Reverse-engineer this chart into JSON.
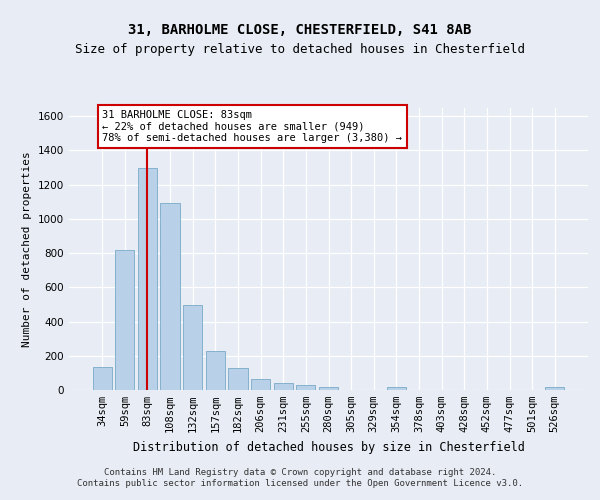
{
  "title1": "31, BARHOLME CLOSE, CHESTERFIELD, S41 8AB",
  "title2": "Size of property relative to detached houses in Chesterfield",
  "xlabel": "Distribution of detached houses by size in Chesterfield",
  "ylabel": "Number of detached properties",
  "categories": [
    "34sqm",
    "59sqm",
    "83sqm",
    "108sqm",
    "132sqm",
    "157sqm",
    "182sqm",
    "206sqm",
    "231sqm",
    "255sqm",
    "280sqm",
    "305sqm",
    "329sqm",
    "354sqm",
    "378sqm",
    "403sqm",
    "428sqm",
    "452sqm",
    "477sqm",
    "501sqm",
    "526sqm"
  ],
  "values": [
    135,
    815,
    1295,
    1090,
    495,
    230,
    130,
    65,
    38,
    27,
    17,
    0,
    0,
    17,
    0,
    0,
    0,
    0,
    0,
    0,
    17
  ],
  "bar_color": "#b8d0e8",
  "bar_edgecolor": "#7aaac8",
  "vline_x_index": 2,
  "vline_color": "#cc0000",
  "annotation_text": "31 BARHOLME CLOSE: 83sqm\n← 22% of detached houses are smaller (949)\n78% of semi-detached houses are larger (3,380) →",
  "annotation_box_facecolor": "#ffffff",
  "annotation_box_edgecolor": "#cc0000",
  "footer_text": "Contains HM Land Registry data © Crown copyright and database right 2024.\nContains public sector information licensed under the Open Government Licence v3.0.",
  "ylim": [
    0,
    1650
  ],
  "yticks": [
    0,
    200,
    400,
    600,
    800,
    1000,
    1200,
    1400,
    1600
  ],
  "background_color": "#e8ecf4",
  "plot_background_color": "#e8ecf4",
  "grid_color": "#ffffff",
  "title1_fontsize": 10,
  "title2_fontsize": 9,
  "xlabel_fontsize": 8.5,
  "ylabel_fontsize": 8,
  "tick_fontsize": 7.5,
  "annotation_fontsize": 7.5,
  "footer_fontsize": 6.5
}
